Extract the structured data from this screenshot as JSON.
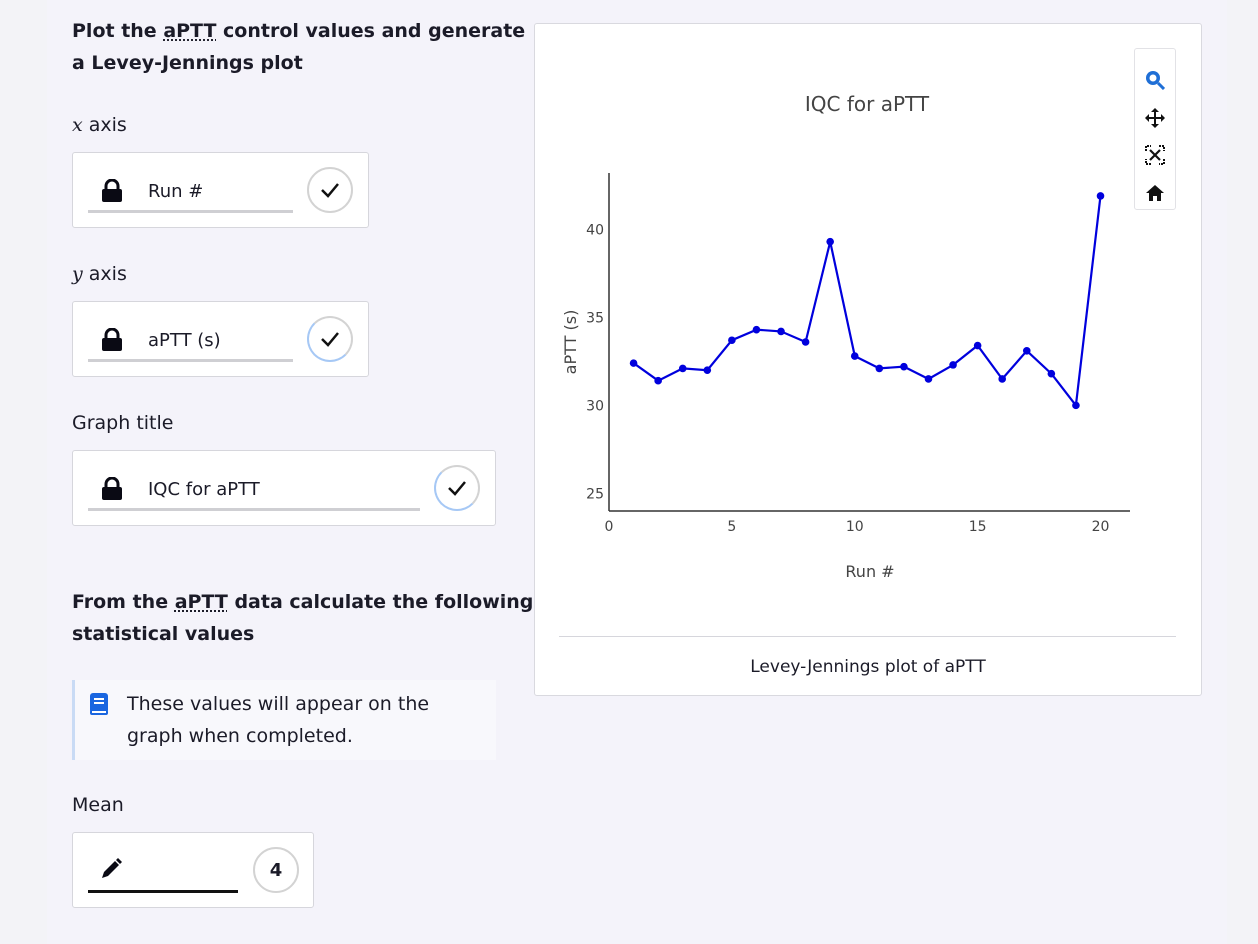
{
  "heading1": {
    "pre": "Plot the ",
    "abbr": "aPTT",
    "post": " control values and generate",
    "line2": "a Levey-Jennings plot"
  },
  "x_axis_label": {
    "var": "x",
    "text": " axis"
  },
  "x_field": {
    "value": "Run #",
    "status": "check"
  },
  "y_axis_label": {
    "var": "y",
    "text": " axis"
  },
  "y_field": {
    "value": "aPTT (s)",
    "status": "check"
  },
  "title_label": "Graph title",
  "title_field": {
    "value": "IQC for aPTT",
    "status": "check"
  },
  "heading2": {
    "pre": "From the ",
    "abbr": "aPTT",
    "post": " data calculate the following",
    "line2": "statistical values"
  },
  "note": {
    "text": "These values will appear on the graph when completed.",
    "icon": "book-icon",
    "color": "#1a66e0"
  },
  "mean_label": "Mean",
  "mean_field": {
    "value": "",
    "counter": "4",
    "icon": "pencil-icon"
  },
  "toolbar": {
    "icons": [
      "zoom-icon",
      "pan-icon",
      "autoscale-icon",
      "reset-home-icon"
    ],
    "active_color": "#1f6fd6"
  },
  "caption": "Levey-Jennings plot of aPTT",
  "chart_data": {
    "type": "line",
    "title": "IQC for aPTT",
    "xlabel": "Run #",
    "ylabel": "aPTT (s)",
    "xlim": [
      0,
      21.2
    ],
    "ylim": [
      24,
      43.2
    ],
    "xticks": [
      0,
      5,
      10,
      15,
      20
    ],
    "yticks": [
      25,
      30,
      35,
      40
    ],
    "grid": false,
    "color": "#0000dd",
    "x": [
      1,
      2,
      3,
      4,
      5,
      6,
      7,
      8,
      9,
      10,
      11,
      12,
      13,
      14,
      15,
      16,
      17,
      18,
      19,
      20
    ],
    "y": [
      32.4,
      31.4,
      32.1,
      32.0,
      33.7,
      34.3,
      34.2,
      33.6,
      39.3,
      32.8,
      32.1,
      32.2,
      31.5,
      32.3,
      33.4,
      31.5,
      33.1,
      31.8,
      30.0,
      41.9
    ]
  }
}
